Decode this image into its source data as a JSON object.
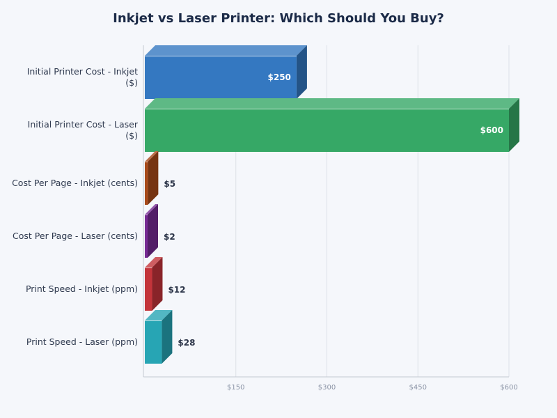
{
  "chart_data": {
    "type": "bar",
    "orientation": "horizontal",
    "style": "3d",
    "title": "Inkjet vs Laser Printer: Which Should You Buy?",
    "xlabel": "",
    "ylabel": "",
    "xlim": [
      0,
      600
    ],
    "grid": true,
    "legend": null,
    "x_ticks": [
      "$150",
      "$300",
      "$450",
      "$600"
    ],
    "categories": [
      "Initial Printer Cost - Inkjet ($)",
      "Initial Printer Cost - Laser ($)",
      "Cost Per Page - Inkjet (cents)",
      "Cost Per Page - Laser (cents)",
      "Print Speed - Inkjet (ppm)",
      "Print Speed - Laser (ppm)"
    ],
    "values": [
      250,
      600,
      5,
      2,
      12,
      28
    ],
    "value_labels": [
      "$250",
      "$600",
      "$5",
      "$2",
      "$12",
      "$28"
    ],
    "colors": [
      "#3478c1",
      "#36a866",
      "#a84a1a",
      "#772b94",
      "#c3343a",
      "#27a5b4"
    ]
  },
  "header": {
    "title": "Inkjet vs Laser Printer: Which Should You Buy?"
  }
}
